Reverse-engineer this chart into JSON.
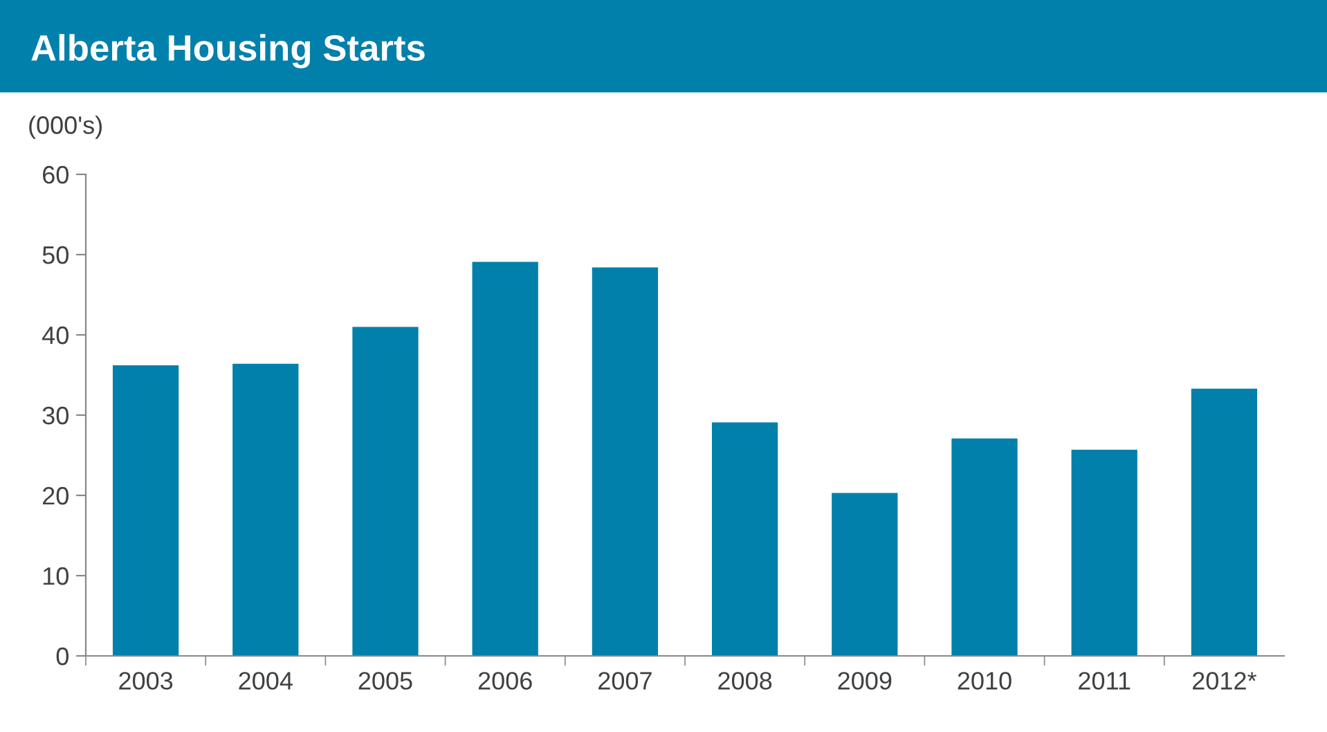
{
  "chart_data": {
    "type": "bar",
    "title": "Alberta Housing Starts",
    "ylabel": "(000's)",
    "categories": [
      "2003",
      "2004",
      "2005",
      "2006",
      "2007",
      "2008",
      "2009",
      "2010",
      "2011",
      "2012*"
    ],
    "values": [
      36.2,
      36.4,
      41.0,
      49.1,
      48.4,
      29.1,
      20.3,
      27.1,
      25.7,
      33.3
    ],
    "color": "#0080aa",
    "ylim": [
      0,
      60
    ],
    "yticks": [
      0,
      10,
      20,
      30,
      40,
      50,
      60
    ],
    "grid": false
  }
}
